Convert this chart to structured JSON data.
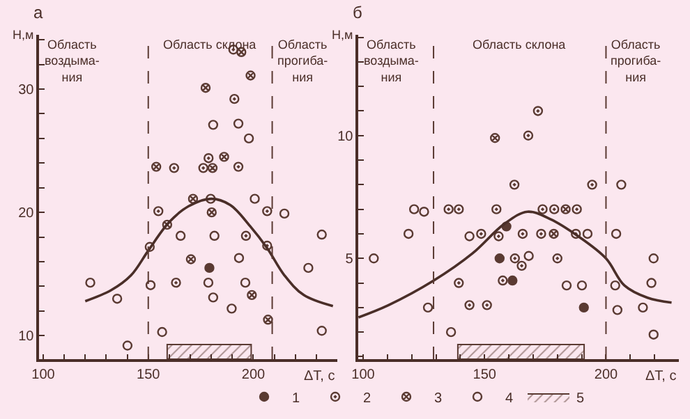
{
  "chart_data": [
    {
      "type": "scatter",
      "title": "а",
      "xlabel": "ΔT, с",
      "ylabel": "Н,м",
      "xlim": [
        98,
        240
      ],
      "xticks": [
        100,
        {
          "value": 110,
          "label": null
        },
        {
          "value": 120,
          "label": null
        },
        {
          "value": 130,
          "label": null
        },
        {
          "value": 140,
          "label": null
        },
        150,
        {
          "value": 160,
          "label": null
        },
        {
          "value": 170,
          "label": null
        },
        {
          "value": 180,
          "label": null
        },
        {
          "value": 190,
          "label": null
        },
        200,
        {
          "value": 210,
          "label": null
        },
        {
          "value": 220,
          "label": null
        },
        {
          "value": 230,
          "label": null
        }
      ],
      "ylim": [
        8.1,
        34.4
      ],
      "yticks": [
        {
          "value": 10,
          "label": "10"
        },
        {
          "value": 12,
          "label": null
        },
        {
          "value": 14,
          "label": null
        },
        {
          "value": 16,
          "label": null
        },
        {
          "value": 18,
          "label": null
        },
        20,
        {
          "value": 22,
          "label": null
        },
        {
          "value": 24,
          "label": null
        },
        {
          "value": 26,
          "label": null
        },
        {
          "value": 28,
          "label": null
        },
        30,
        {
          "value": 32,
          "label": null
        },
        {
          "value": 34,
          "label": null
        }
      ],
      "legend": "bottom",
      "series": [
        {
          "name": "1",
          "marker": "circle",
          "color": "#5a3a32",
          "x": [
            179.1
          ],
          "values": [
            15.5
          ]
        },
        {
          "name": "2",
          "marker": "circle",
          "color": "#5a3a32",
          "x": [
            154.8,
            206.6,
            163.2,
            196.5,
            206.6,
            190.5,
            191.0,
            178.7,
            162.3,
            176.2,
            192.9
          ],
          "values": [
            20.1,
            20.1,
            14.3,
            18.1,
            17.3,
            33.2,
            29.2,
            24.4,
            23.6,
            23.6,
            23.7
          ]
        },
        {
          "name": "3",
          "marker": "cross",
          "color": "#5a3a32",
          "x": [
            171.3,
            180.2,
            159.0,
            170.3,
            199.3,
            207.0,
            194.3,
            198.7,
            177.3,
            186.1,
            153.8,
            180.6
          ],
          "values": [
            21.1,
            20.0,
            19.0,
            16.2,
            13.3,
            11.3,
            33.0,
            31.1,
            30.1,
            24.5,
            23.7,
            23.6
          ]
        },
        {
          "name": "4",
          "marker": "circle",
          "color": "#5a3a32",
          "x": [
            122.4,
            135.2,
            140.1,
            179.7,
            200.7,
            214.8,
            150.7,
            165.4,
            181.5,
            232.6,
            193.2,
            226.2,
            151.1,
            178.6,
            196.2,
            180.9,
            189.7,
            156.6,
            232.6,
            180.9,
            192.9,
            197.9
          ],
          "values": [
            14.3,
            13.0,
            9.2,
            21.1,
            21.1,
            19.9,
            17.2,
            18.1,
            18.1,
            18.2,
            16.3,
            15.5,
            14.1,
            14.3,
            14.3,
            13.1,
            12.2,
            10.3,
            10.4,
            27.1,
            27.2,
            26.0
          ]
        },
        {
          "type": "line",
          "marker": "none",
          "line_style": "solid",
          "color": "#4a2e28",
          "x": [
            120,
            132.4,
            141.8,
            150,
            159.9,
            169.2,
            180,
            189,
            198.4,
            206.6,
            214.8,
            224,
            237.9
          ],
          "values": [
            12.8,
            13.7,
            14.9,
            16.9,
            19.2,
            20.5,
            21.1,
            20.6,
            18.9,
            17.1,
            14.9,
            13.3,
            12.4
          ]
        }
      ],
      "ref_lines": [
        {
          "axis": "x",
          "value": 150,
          "line_style": "dashed",
          "color": "#5a3a32"
        },
        {
          "axis": "x",
          "value": 209,
          "line_style": "dashed",
          "color": "#5a3a32"
        }
      ],
      "bands": [
        {
          "axis": "x",
          "from": 159,
          "to": 199,
          "label": "5",
          "color": "#5a3a32"
        }
      ],
      "annotations": [
        "Область\nвоздыма-\nния",
        "Область склона",
        "Область\nпрогиба-\nния"
      ]
    },
    {
      "type": "scatter",
      "title": "б",
      "xlabel": "ΔT, с",
      "ylabel": "Н,м",
      "xlim": [
        98,
        230
      ],
      "xticks": [
        100,
        {
          "value": 110,
          "label": null
        },
        {
          "value": 120,
          "label": null
        },
        {
          "value": 130,
          "label": null
        },
        {
          "value": 140,
          "label": null
        },
        150,
        {
          "value": 160,
          "label": null
        },
        {
          "value": 170,
          "label": null
        },
        {
          "value": 180,
          "label": null
        },
        {
          "value": 190,
          "label": null
        },
        200,
        {
          "value": 210,
          "label": null
        },
        {
          "value": 220,
          "label": null
        }
      ],
      "ylim": [
        0.9,
        14.1
      ],
      "yticks": [
        {
          "value": 1,
          "label": null
        },
        {
          "value": 2,
          "label": null
        },
        {
          "value": 3,
          "label": null
        },
        {
          "value": 4,
          "label": null
        },
        5,
        {
          "value": 6,
          "label": null
        },
        {
          "value": 7,
          "label": null
        },
        {
          "value": 8,
          "label": null
        },
        {
          "value": 9,
          "label": null
        },
        10,
        {
          "value": 11,
          "label": null
        },
        {
          "value": 12,
          "label": null
        },
        {
          "value": 13,
          "label": null
        },
        {
          "value": 14,
          "label": null
        }
      ],
      "series": [
        {
          "name": "1",
          "marker": "circle",
          "color": "#5a3a32",
          "x": [
            159.0,
            156.2,
            161.5,
            190.9
          ],
          "values": [
            6.3,
            5.0,
            4.1,
            3.0
          ]
        },
        {
          "name": "2",
          "marker": "circle",
          "color": "#5a3a32",
          "x": [
            168.0,
            172.0,
            162.3,
            194.3,
            135.2,
            139.4,
            139.4,
            143.8,
            151.0,
            148.6,
            154.9,
            155.8,
            157.5,
            162.5,
            165.3,
            165.7,
            173.3,
            173.9,
            178.7,
            188.0,
            187.6,
            180.0
          ],
          "values": [
            10.0,
            11.0,
            8.0,
            8.0,
            7.0,
            7.0,
            4.0,
            3.1,
            3.1,
            6.0,
            7.0,
            5.9,
            4.1,
            5.0,
            4.7,
            6.0,
            6.0,
            7.0,
            7.0,
            7.0,
            6.0,
            5.0
          ]
        },
        {
          "name": "3",
          "marker": "cross",
          "color": "#5a3a32",
          "x": [
            154.3,
            178.5,
            183.4
          ],
          "values": [
            9.9,
            6.0,
            7.0
          ]
        },
        {
          "name": "4",
          "marker": "circle",
          "color": "#5a3a32",
          "x": [
            206.3,
            104.4,
            121.0,
            125.1,
            118.7,
            126.7,
            136.2,
            143.8,
            168.2,
            192.4,
            183.8,
            190.1,
            204.2,
            203.8,
            204.7,
            215.2,
            218.7,
            219.6,
            219.6
          ],
          "values": [
            8.0,
            5.0,
            7.0,
            6.9,
            6.0,
            3.0,
            2.0,
            5.9,
            5.1,
            6.0,
            3.9,
            3.9,
            6.0,
            3.9,
            2.9,
            3.0,
            4.0,
            5.0,
            1.9
          ]
        },
        {
          "type": "line",
          "marker": "none",
          "line_style": "solid",
          "color": "#4a2e28",
          "x": [
            98.1,
            110.5,
            129.1,
            145,
            158.1,
            167.6,
            177.1,
            188.6,
            200,
            207.6,
            217.1,
            227
          ],
          "values": [
            2.6,
            3.1,
            4.1,
            5.2,
            6.4,
            6.9,
            6.6,
            5.9,
            5.0,
            3.9,
            3.4,
            3.2
          ]
        }
      ],
      "ref_lines": [
        {
          "axis": "x",
          "value": 129,
          "line_style": "dashed",
          "color": "#5a3a32"
        },
        {
          "axis": "x",
          "value": 200,
          "line_style": "dashed",
          "color": "#5a3a32"
        }
      ],
      "bands": [
        {
          "axis": "x",
          "from": 139,
          "to": 191,
          "color": "#5a3a32"
        }
      ],
      "annotations": [
        "Область\nвоздыма-\nния",
        "Область склона",
        "Область\nпрогиба-\nния"
      ]
    }
  ]
}
